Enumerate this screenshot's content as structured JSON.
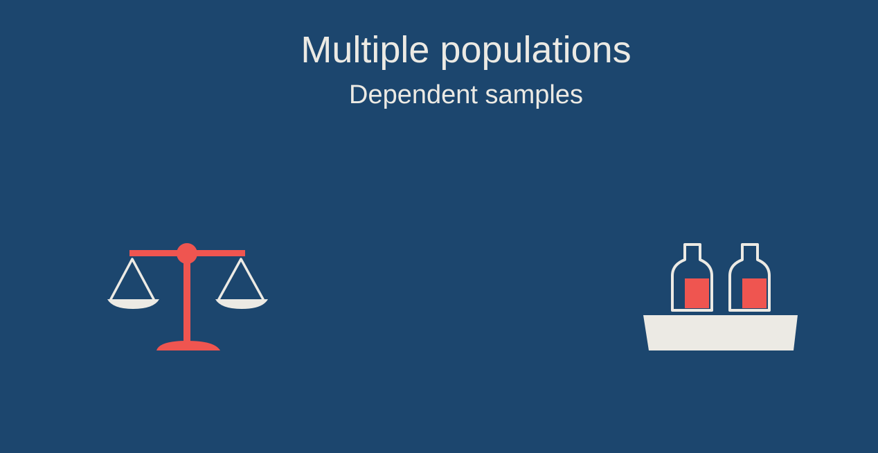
{
  "slide": {
    "title": "Multiple populations",
    "subtitle": "Dependent samples"
  },
  "icons": {
    "left": "balance-scale-icon",
    "right": "bottles-in-crate-icon"
  },
  "colors": {
    "background": "#1c466e",
    "text": "#eceae4",
    "accent_red": "#ef5550",
    "cream": "#eceae4"
  }
}
